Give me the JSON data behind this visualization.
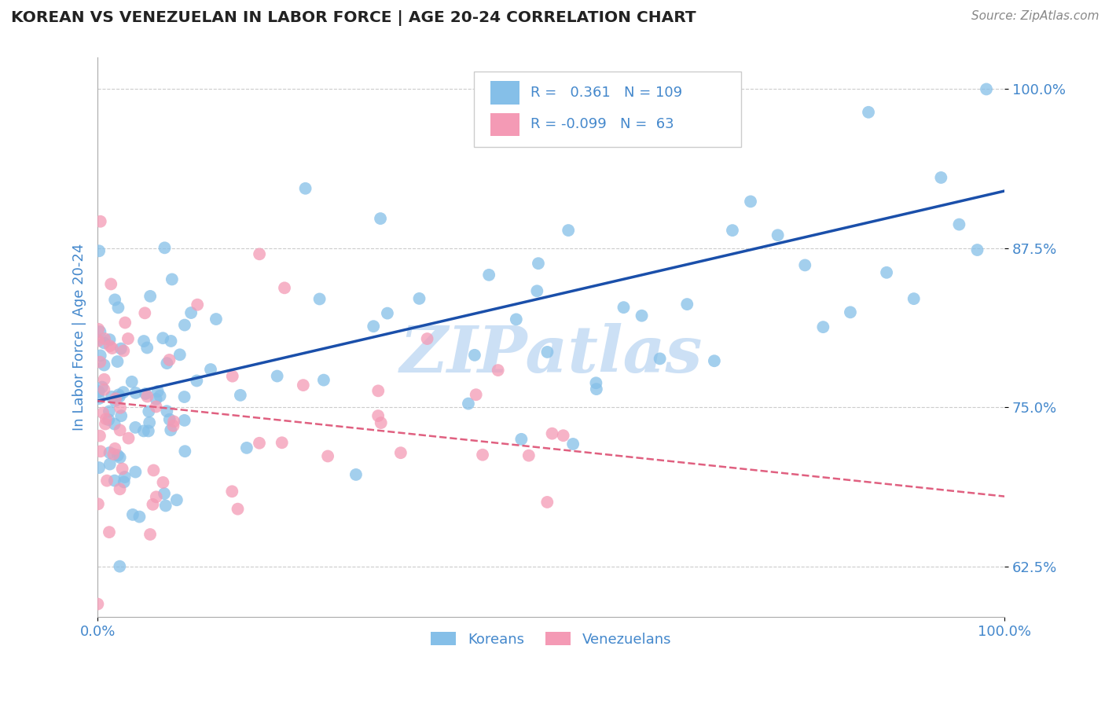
{
  "title": "KOREAN VS VENEZUELAN IN LABOR FORCE | AGE 20-24 CORRELATION CHART",
  "source_text": "Source: ZipAtlas.com",
  "ylabel": "In Labor Force | Age 20-24",
  "xlim": [
    0.0,
    1.0
  ],
  "ylim": [
    0.585,
    1.025
  ],
  "yticks": [
    0.625,
    0.75,
    0.875,
    1.0
  ],
  "ytick_labels": [
    "62.5%",
    "75.0%",
    "87.5%",
    "100.0%"
  ],
  "xticks": [
    0.0,
    1.0
  ],
  "xtick_labels": [
    "0.0%",
    "100.0%"
  ],
  "korean_R": 0.361,
  "korean_N": 109,
  "venezuelan_R": -0.099,
  "venezuelan_N": 63,
  "korean_color": "#85bfe8",
  "venezuelan_color": "#f49ab5",
  "trend_korean_color": "#1a4faa",
  "trend_venezuelan_color": "#e06080",
  "watermark_color": "#cce0f5",
  "background_color": "#ffffff",
  "grid_color": "#cccccc",
  "title_color": "#222222",
  "axis_label_color": "#4488cc",
  "tick_label_color": "#4488cc",
  "legend_korean_label": "Koreans",
  "legend_venezuelan_label": "Venezuelans",
  "korean_trend_x0": 0.0,
  "korean_trend_y0": 0.755,
  "korean_trend_x1": 1.0,
  "korean_trend_y1": 0.92,
  "venezuelan_trend_x0": 0.0,
  "venezuelan_trend_y0": 0.755,
  "venezuelan_trend_x1": 1.0,
  "venezuelan_trend_y1": 0.68
}
